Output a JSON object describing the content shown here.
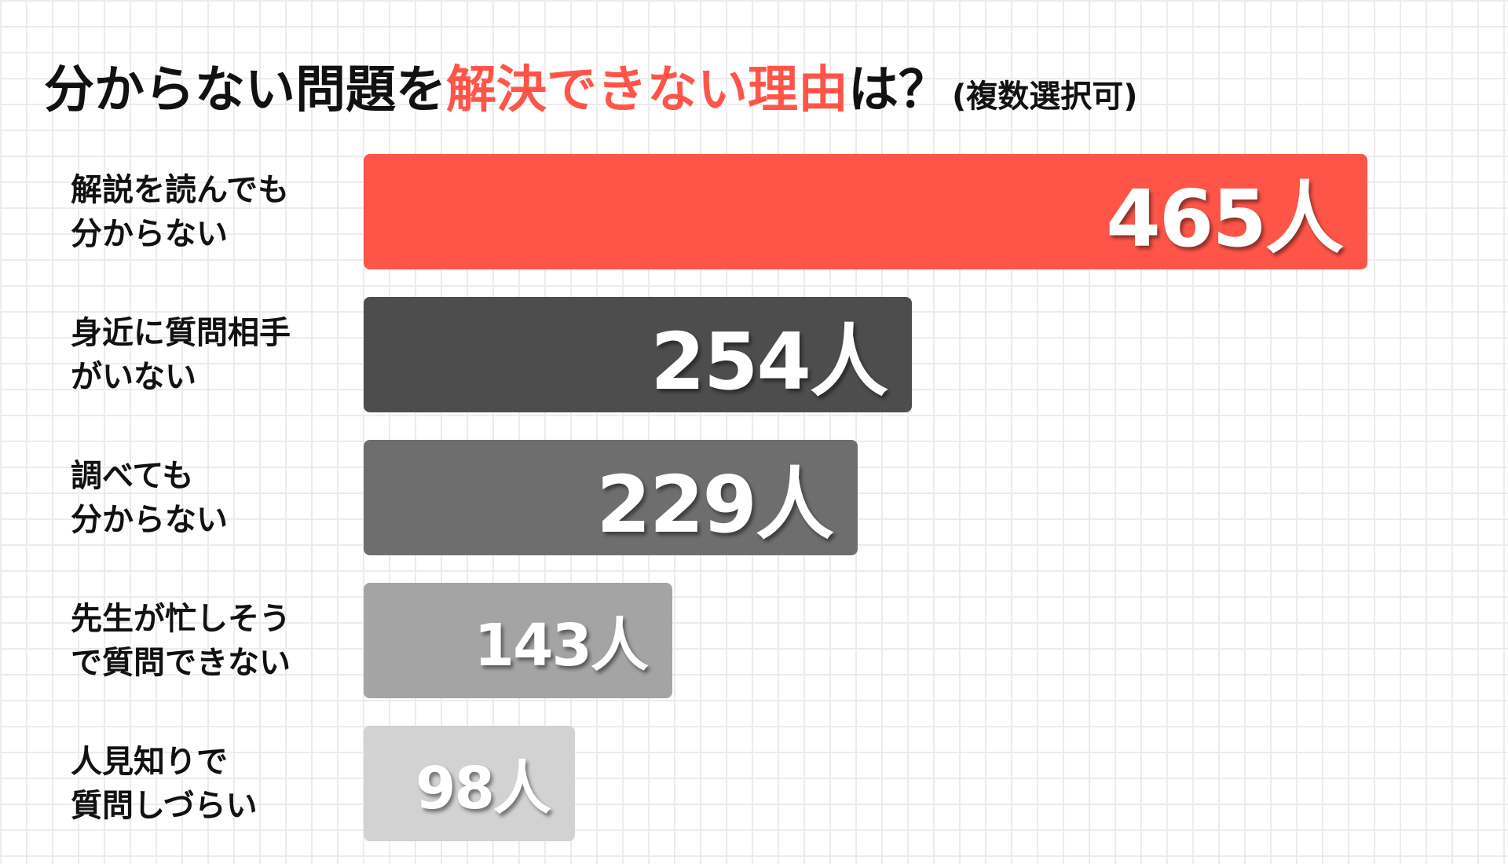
{
  "chart_data": {
    "type": "bar",
    "orientation": "horizontal",
    "title": {
      "main": "分からない問題を",
      "accent": "解決できない理由",
      "end": "は？",
      "note": "(複数選択可)"
    },
    "unit": "人",
    "categories": [
      [
        "解説を読んでも",
        "分からない"
      ],
      [
        "身近に質問相手",
        "がいない"
      ],
      [
        "調べても",
        "分からない"
      ],
      [
        "先生が忙しそう",
        "で質問できない"
      ],
      [
        "人見知りで",
        "質問しづらい"
      ]
    ],
    "values": [
      465,
      254,
      229,
      143,
      98
    ],
    "value_labels": [
      "465人",
      "254人",
      "229人",
      "143人",
      "98人"
    ],
    "colors": [
      "#ff5549",
      "#4d4d4d",
      "#6e6e6e",
      "#a4a4a4",
      "#d2d2d2"
    ],
    "title_accent_color": "#ff5549",
    "xlim": [
      0,
      465
    ],
    "grid": false,
    "legend": "none"
  }
}
